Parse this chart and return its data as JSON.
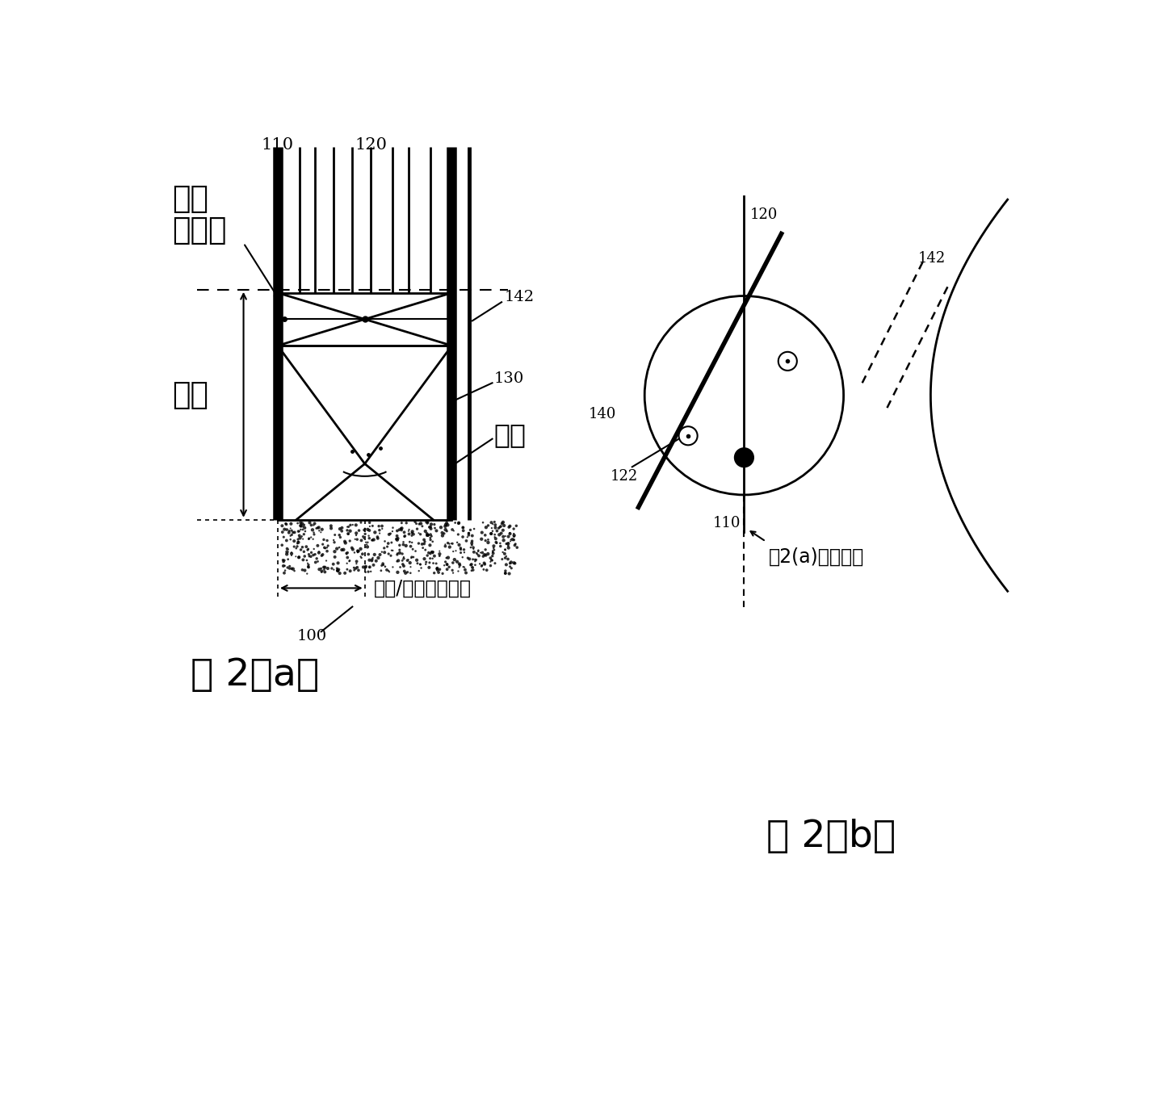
{
  "bg_color": "#ffffff",
  "fig_width": 14.29,
  "fig_height": 13.86,
  "fig2a_label": "图 2（a）",
  "fig2b_label": "图 2（b）",
  "label_110": "110",
  "label_120": "120",
  "label_130": "130",
  "label_142": "142",
  "label_100": "100",
  "label_140": "140",
  "label_122": "122",
  "label_110b": "110",
  "text_zhaomin": "照明",
  "text_shoji": "收集角",
  "text_jiaoju": "焦距",
  "text_zuzhi": "组织",
  "text_spot": "照明/收集光斜大小",
  "text_cross": "图2(a)显示横切"
}
